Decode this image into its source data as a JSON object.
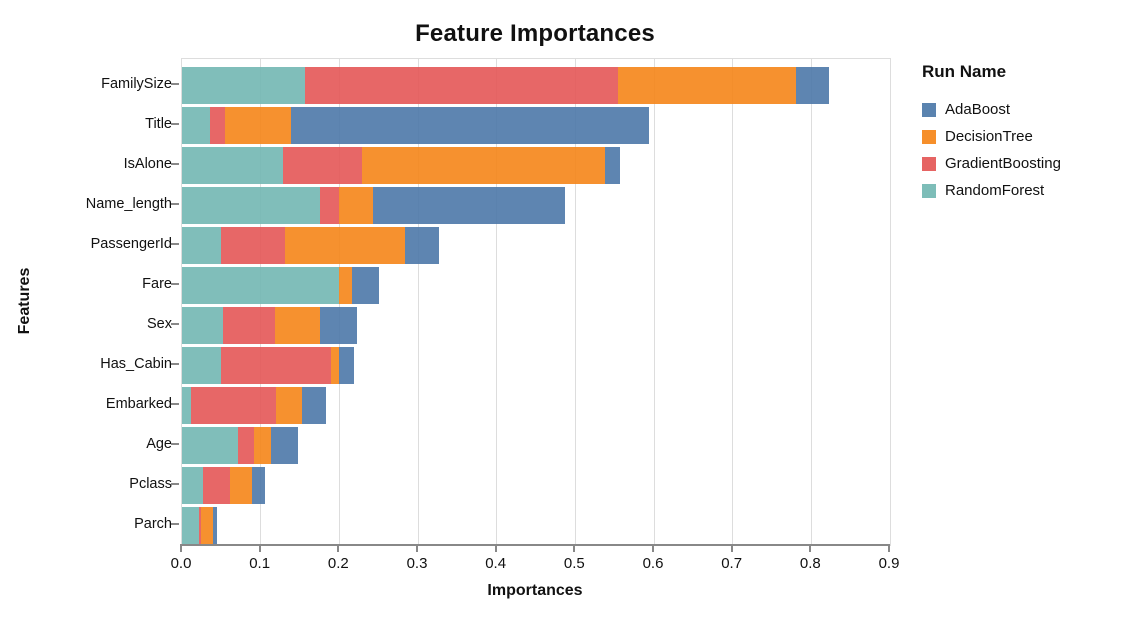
{
  "chart_data": {
    "type": "bar",
    "variant": "horizontal-stacked",
    "title": "Feature Importances",
    "xlabel": "Importances",
    "ylabel": "Features",
    "legend_title": "Run Name",
    "legend_position": "right",
    "grid": true,
    "xlim": [
      0,
      0.9
    ],
    "xticks": [
      0.0,
      0.1,
      0.2,
      0.3,
      0.4,
      0.5,
      0.6,
      0.7,
      0.8,
      0.9
    ],
    "xtick_labels": [
      "0.0",
      "0.1",
      "0.2",
      "0.3",
      "0.4",
      "0.5",
      "0.6",
      "0.7",
      "0.8",
      "0.9"
    ],
    "categories": [
      "FamilySize",
      "Title",
      "IsAlone",
      "Name_length",
      "PassengerId",
      "Fare",
      "Sex",
      "Has_Cabin",
      "Embarked",
      "Age",
      "Pclass",
      "Parch"
    ],
    "stack_order": [
      "RandomForest",
      "GradientBoosting",
      "DecisionTree",
      "AdaBoost"
    ],
    "series": [
      {
        "name": "AdaBoost",
        "color": "#4c78a8",
        "values": [
          0.041,
          0.456,
          0.019,
          0.244,
          0.044,
          0.035,
          0.047,
          0.02,
          0.031,
          0.034,
          0.016,
          0.006
        ]
      },
      {
        "name": "DecisionTree",
        "color": "#f58518",
        "values": [
          0.227,
          0.083,
          0.309,
          0.043,
          0.152,
          0.017,
          0.058,
          0.01,
          0.033,
          0.022,
          0.028,
          0.015
        ]
      },
      {
        "name": "GradientBoosting",
        "color": "#e45756",
        "values": [
          0.398,
          0.02,
          0.1,
          0.024,
          0.081,
          0.0,
          0.066,
          0.139,
          0.107,
          0.02,
          0.034,
          0.002
        ]
      },
      {
        "name": "RandomForest",
        "color": "#72b7b2",
        "values": [
          0.156,
          0.035,
          0.129,
          0.176,
          0.05,
          0.199,
          0.052,
          0.05,
          0.012,
          0.071,
          0.027,
          0.022
        ]
      }
    ],
    "style": {
      "grid_color": "#dddddd",
      "axis_color": "#888888",
      "bar_opacity": 0.9
    }
  }
}
